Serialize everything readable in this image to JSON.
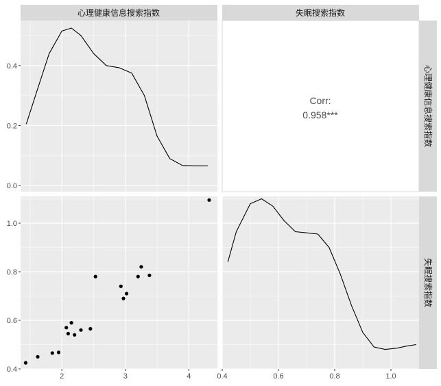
{
  "chart_data": {
    "type": "scatter",
    "layout": "pairs-matrix",
    "colors": {
      "panel_bg": "#ebebeb",
      "grid": "#ffffff",
      "strip_bg": "#d9d9d9",
      "line": "#000000",
      "point": "#000000",
      "text": "#4d4d4d"
    },
    "variables": [
      "心理健康信息搜索指数",
      "失眠搜索指数"
    ],
    "x_scales": [
      {
        "range": [
          1.35,
          4.45
        ],
        "ticks": [
          "2",
          "3",
          "4"
        ],
        "tick_values": [
          2,
          3,
          4
        ]
      },
      {
        "range": [
          0.4,
          1.1
        ],
        "ticks": [
          "0.4",
          "0.6",
          "0.8",
          "1.0"
        ],
        "tick_values": [
          0.4,
          0.6,
          0.8,
          1.0
        ]
      }
    ],
    "y_scales": [
      {
        "range": [
          -0.02,
          0.55
        ],
        "ticks": [
          "0.0",
          "0.2",
          "0.4"
        ],
        "tick_values": [
          0.0,
          0.2,
          0.4
        ]
      },
      {
        "range": [
          0.4,
          1.11
        ],
        "ticks": [
          "0.4",
          "0.6",
          "0.8",
          "1.0"
        ],
        "tick_values": [
          0.4,
          0.6,
          0.8,
          1.0
        ]
      }
    ],
    "density_1": {
      "x": [
        1.44,
        1.6,
        1.8,
        2.0,
        2.15,
        2.3,
        2.5,
        2.7,
        2.9,
        3.1,
        3.3,
        3.5,
        3.7,
        3.9,
        4.1,
        4.3
      ],
      "y": [
        0.205,
        0.31,
        0.44,
        0.515,
        0.525,
        0.5,
        0.44,
        0.4,
        0.393,
        0.375,
        0.3,
        0.165,
        0.09,
        0.067,
        0.066,
        0.066
      ]
    },
    "corr": {
      "label": "Corr:",
      "value": "0.958***"
    },
    "scatter": {
      "x": [
        1.43,
        1.62,
        1.85,
        1.95,
        2.07,
        2.1,
        2.15,
        2.2,
        2.3,
        2.45,
        2.53,
        2.93,
        2.97,
        3.02,
        3.2,
        3.25,
        3.38,
        4.32
      ],
      "y": [
        0.425,
        0.45,
        0.465,
        0.468,
        0.57,
        0.545,
        0.59,
        0.54,
        0.56,
        0.565,
        0.78,
        0.74,
        0.69,
        0.71,
        0.78,
        0.82,
        0.785,
        1.095
      ]
    },
    "density_2": {
      "x": [
        0.42,
        0.45,
        0.5,
        0.54,
        0.58,
        0.62,
        0.66,
        0.7,
        0.74,
        0.78,
        0.82,
        0.86,
        0.9,
        0.94,
        0.98,
        1.02,
        1.06,
        1.09
      ],
      "y": [
        0.84,
        0.965,
        1.08,
        1.1,
        1.07,
        1.01,
        0.965,
        0.96,
        0.955,
        0.9,
        0.79,
        0.66,
        0.55,
        0.49,
        0.48,
        0.485,
        0.495,
        0.5
      ]
    }
  }
}
